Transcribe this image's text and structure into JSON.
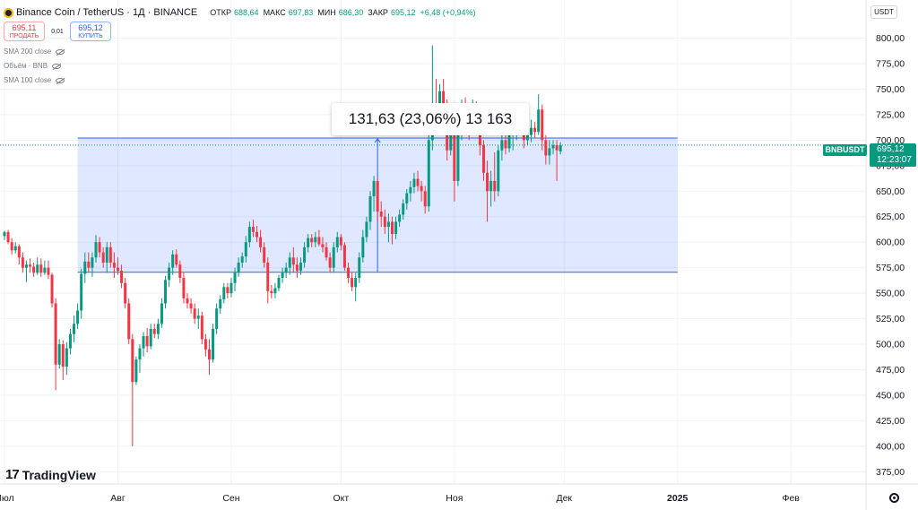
{
  "header": {
    "title": "Binance Coin / TetherUS · 1Д · BINANCE",
    "ohlc": [
      {
        "label": "ОТКР",
        "value": "688,64"
      },
      {
        "label": "МАКС",
        "value": "697,83"
      },
      {
        "label": "МИН",
        "value": "686,30"
      },
      {
        "label": "ЗАКР",
        "value": "695,12"
      }
    ],
    "change": "+6,48 (+0,94%)"
  },
  "trade": {
    "sell_price": "695,11",
    "sell_label": "ПРОДАТЬ",
    "spread": "0,01",
    "buy_price": "695,12",
    "buy_label": "КУПИТЬ"
  },
  "indicators": [
    "SMA 200 close",
    "Объём · BNB",
    "SMA 100 close"
  ],
  "currency": "USDT",
  "symbol_tag": "BNBUSDT",
  "last_price": "695,12",
  "countdown": "12:23:07",
  "measure_label": "131,63 (23,06%) 13 163",
  "logo_text": "TradingView",
  "colors": {
    "up": "#089981",
    "down": "#f23645",
    "measure": "#2962ff",
    "measure_fill": "rgba(41,98,255,0.15)"
  },
  "chart_data": {
    "type": "candlestick",
    "y_ticks": [
      "375,00",
      "400,00",
      "425,00",
      "450,00",
      "475,00",
      "500,00",
      "525,00",
      "550,00",
      "575,00",
      "600,00",
      "625,00",
      "650,00",
      "675,00",
      "700,00",
      "725,00",
      "750,00",
      "775,00",
      "800,00"
    ],
    "ylim": [
      363,
      811
    ],
    "x_ticks": [
      {
        "label": "Июл",
        "idx": 0
      },
      {
        "label": "Авг",
        "idx": 31
      },
      {
        "label": "Сен",
        "idx": 62
      },
      {
        "label": "Окт",
        "idx": 92
      },
      {
        "label": "Ноя",
        "idx": 123
      },
      {
        "label": "Дек",
        "idx": 153
      },
      {
        "label": "2025",
        "idx": 184
      },
      {
        "label": "Фев",
        "idx": 215
      }
    ],
    "measure": {
      "from_idx": 20,
      "to_idx": 184,
      "low": 570.5,
      "high": 702.1
    },
    "last_close": 695.12,
    "candles": [
      [
        606,
        611,
        602,
        610
      ],
      [
        610,
        612,
        598,
        600
      ],
      [
        600,
        604,
        588,
        592
      ],
      [
        592,
        600,
        589,
        596
      ],
      [
        596,
        598,
        578,
        585
      ],
      [
        585,
        590,
        570,
        575
      ],
      [
        575,
        582,
        561,
        578
      ],
      [
        578,
        584,
        570,
        576
      ],
      [
        576,
        580,
        566,
        570
      ],
      [
        570,
        585,
        568,
        578
      ],
      [
        578,
        584,
        566,
        570
      ],
      [
        570,
        582,
        568,
        575
      ],
      [
        575,
        582,
        564,
        568
      ],
      [
        568,
        570,
        536,
        540
      ],
      [
        540,
        545,
        455,
        480
      ],
      [
        480,
        505,
        476,
        500
      ],
      [
        500,
        504,
        465,
        478
      ],
      [
        478,
        502,
        470,
        496
      ],
      [
        496,
        515,
        490,
        510
      ],
      [
        510,
        528,
        502,
        520
      ],
      [
        520,
        540,
        515,
        533
      ],
      [
        533,
        574,
        525,
        569
      ],
      [
        569,
        590,
        560,
        581
      ],
      [
        581,
        590,
        570,
        575
      ],
      [
        575,
        590,
        566,
        585
      ],
      [
        585,
        607,
        580,
        600
      ],
      [
        600,
        605,
        585,
        590
      ],
      [
        590,
        595,
        575,
        580
      ],
      [
        580,
        600,
        570,
        595
      ],
      [
        595,
        600,
        575,
        580
      ],
      [
        580,
        590,
        565,
        575
      ],
      [
        575,
        585,
        568,
        572
      ],
      [
        572,
        578,
        555,
        560
      ],
      [
        560,
        565,
        535,
        540
      ],
      [
        540,
        545,
        500,
        505
      ],
      [
        505,
        510,
        400,
        463
      ],
      [
        463,
        488,
        460,
        485
      ],
      [
        485,
        500,
        472,
        496
      ],
      [
        496,
        512,
        488,
        508
      ],
      [
        508,
        516,
        492,
        498
      ],
      [
        498,
        520,
        495,
        515
      ],
      [
        515,
        520,
        506,
        510
      ],
      [
        510,
        525,
        505,
        520
      ],
      [
        520,
        545,
        516,
        540
      ],
      [
        540,
        567,
        535,
        563
      ],
      [
        563,
        580,
        556,
        575
      ],
      [
        575,
        592,
        568,
        588
      ],
      [
        588,
        593,
        575,
        578
      ],
      [
        578,
        582,
        560,
        565
      ],
      [
        565,
        570,
        540,
        545
      ],
      [
        545,
        550,
        535,
        540
      ],
      [
        540,
        545,
        530,
        535
      ],
      [
        535,
        540,
        520,
        525
      ],
      [
        525,
        535,
        515,
        528
      ],
      [
        528,
        532,
        500,
        505
      ],
      [
        505,
        510,
        488,
        495
      ],
      [
        495,
        505,
        470,
        485
      ],
      [
        485,
        520,
        482,
        515
      ],
      [
        515,
        540,
        510,
        535
      ],
      [
        535,
        548,
        530,
        544
      ],
      [
        544,
        560,
        540,
        556
      ],
      [
        556,
        560,
        545,
        550
      ],
      [
        550,
        565,
        546,
        560
      ],
      [
        560,
        575,
        552,
        570
      ],
      [
        570,
        585,
        566,
        580
      ],
      [
        580,
        590,
        575,
        586
      ],
      [
        586,
        606,
        580,
        600
      ],
      [
        600,
        620,
        595,
        615
      ],
      [
        615,
        622,
        605,
        610
      ],
      [
        610,
        616,
        600,
        605
      ],
      [
        605,
        612,
        590,
        595
      ],
      [
        595,
        600,
        575,
        580
      ],
      [
        580,
        585,
        540,
        552
      ],
      [
        552,
        558,
        545,
        550
      ],
      [
        550,
        560,
        545,
        555
      ],
      [
        555,
        568,
        552,
        565
      ],
      [
        565,
        575,
        560,
        570
      ],
      [
        570,
        580,
        565,
        575
      ],
      [
        575,
        590,
        568,
        585
      ],
      [
        585,
        595,
        570,
        578
      ],
      [
        578,
        585,
        565,
        572
      ],
      [
        572,
        585,
        568,
        580
      ],
      [
        580,
        600,
        575,
        595
      ],
      [
        595,
        608,
        590,
        604
      ],
      [
        604,
        608,
        595,
        600
      ],
      [
        600,
        610,
        595,
        605
      ],
      [
        605,
        612,
        596,
        598
      ],
      [
        598,
        605,
        590,
        595
      ],
      [
        595,
        600,
        582,
        585
      ],
      [
        585,
        590,
        570,
        575
      ],
      [
        575,
        600,
        570,
        595
      ],
      [
        595,
        610,
        590,
        605
      ],
      [
        605,
        608,
        592,
        597
      ],
      [
        597,
        600,
        572,
        575
      ],
      [
        575,
        580,
        560,
        565
      ],
      [
        565,
        570,
        552,
        556
      ],
      [
        556,
        570,
        542,
        565
      ],
      [
        565,
        590,
        560,
        585
      ],
      [
        585,
        612,
        580,
        605
      ],
      [
        605,
        625,
        600,
        620
      ],
      [
        620,
        650,
        612,
        645
      ],
      [
        645,
        665,
        630,
        660
      ],
      [
        660,
        662,
        620,
        630
      ],
      [
        630,
        640,
        615,
        625
      ],
      [
        625,
        632,
        608,
        615
      ],
      [
        615,
        628,
        600,
        620
      ],
      [
        620,
        625,
        598,
        608
      ],
      [
        608,
        625,
        603,
        620
      ],
      [
        620,
        632,
        615,
        627
      ],
      [
        627,
        642,
        622,
        638
      ],
      [
        638,
        652,
        632,
        648
      ],
      [
        648,
        660,
        640,
        654
      ],
      [
        654,
        668,
        648,
        662
      ],
      [
        662,
        670,
        650,
        655
      ],
      [
        655,
        660,
        640,
        650
      ],
      [
        650,
        655,
        628,
        635
      ],
      [
        635,
        710,
        630,
        700
      ],
      [
        700,
        793,
        690,
        725
      ],
      [
        725,
        760,
        706,
        720
      ],
      [
        720,
        755,
        712,
        748
      ],
      [
        748,
        760,
        725,
        730
      ],
      [
        730,
        740,
        680,
        690
      ],
      [
        690,
        715,
        685,
        710
      ],
      [
        710,
        720,
        640,
        660
      ],
      [
        660,
        715,
        655,
        708
      ],
      [
        708,
        740,
        700,
        730
      ],
      [
        730,
        742,
        715,
        720
      ],
      [
        720,
        735,
        700,
        710
      ],
      [
        710,
        740,
        705,
        725
      ],
      [
        725,
        738,
        708,
        712
      ],
      [
        712,
        720,
        685,
        695
      ],
      [
        695,
        700,
        660,
        668
      ],
      [
        668,
        680,
        620,
        650
      ],
      [
        650,
        670,
        635,
        660
      ],
      [
        660,
        688,
        640,
        650
      ],
      [
        650,
        695,
        645,
        690
      ],
      [
        690,
        705,
        680,
        700
      ],
      [
        700,
        712,
        686,
        692
      ],
      [
        692,
        710,
        688,
        705
      ],
      [
        705,
        715,
        690,
        708
      ],
      [
        708,
        725,
        700,
        712
      ],
      [
        712,
        728,
        705,
        708
      ],
      [
        708,
        720,
        692,
        700
      ],
      [
        700,
        712,
        695,
        705
      ],
      [
        705,
        720,
        698,
        712
      ],
      [
        712,
        718,
        702,
        708
      ],
      [
        708,
        745,
        705,
        730
      ],
      [
        730,
        735,
        690,
        700
      ],
      [
        700,
        705,
        676,
        685
      ],
      [
        685,
        700,
        676,
        692
      ],
      [
        692,
        700,
        686,
        695
      ],
      [
        695,
        700,
        660,
        690
      ],
      [
        689,
        698,
        686,
        695
      ]
    ]
  }
}
